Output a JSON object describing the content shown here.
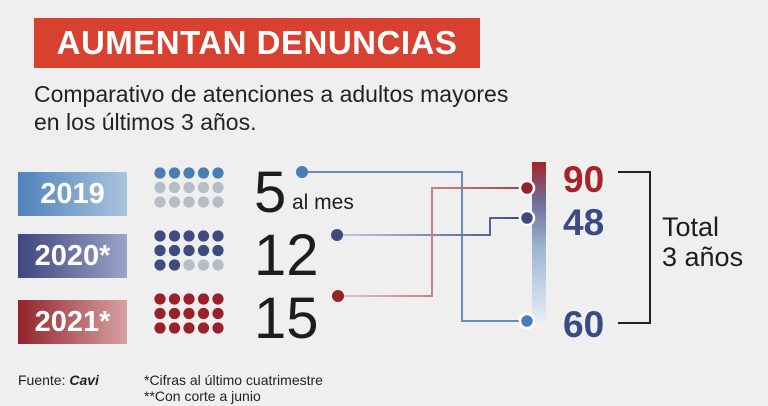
{
  "header": {
    "title": "AUMENTAN DENUNCIAS",
    "subtitle_line1": "Comparativo de atenciones a adultos mayores",
    "subtitle_line2": "en los últimos 3 años."
  },
  "rows": [
    {
      "year_label": "2019",
      "value": "5",
      "value_suffix": "al mes",
      "filled_dots": 5,
      "total_dots": 15,
      "fill_color": "#4a7db4",
      "empty_color": "#b7bdc4"
    },
    {
      "year_label": "2020*",
      "value": "12",
      "filled_dots": 12,
      "total_dots": 15,
      "fill_color": "#3f4a80",
      "empty_color": "#b7bdc4"
    },
    {
      "year_label": "2021*",
      "value": "15",
      "filled_dots": 15,
      "total_dots": 15,
      "fill_color": "#98222b",
      "empty_color": "#b7bdc4"
    }
  ],
  "totals": {
    "v2021": "90",
    "v2020": "48",
    "v2019": "60",
    "total_line1": "Total",
    "total_line2": "3 años"
  },
  "colors": {
    "title_bg": "#d8402f",
    "red": "#a8222a",
    "navy": "#3a4a83",
    "blue": "#4a7db4"
  },
  "footer": {
    "source_label": "Fuente:",
    "source_name": "Cavi",
    "note1": "*Cifras al último cuatrimestre",
    "note2": "**Con corte a junio"
  }
}
